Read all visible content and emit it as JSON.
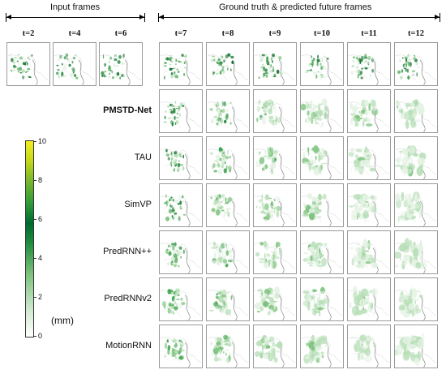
{
  "headers": {
    "input": "Input frames",
    "future": "Ground truth & predicted future frames"
  },
  "time_labels": [
    "t=2",
    "t=4",
    "t=6",
    "t=7",
    "t=8",
    "t=9",
    "t=10",
    "t=11",
    "t=12"
  ],
  "models": [
    "PMSTD-Net",
    "TAU",
    "SimVP",
    "PredRNN++",
    "PredRNNv2",
    "MotionRNN"
  ],
  "colorbar": {
    "ticks": [
      "0",
      "2",
      "4",
      "6",
      "8",
      "10"
    ],
    "unit": "(mm)",
    "colors": {
      "low": "#ffffff",
      "mid": "#006a2e",
      "high": "#f2ee22"
    }
  }
}
